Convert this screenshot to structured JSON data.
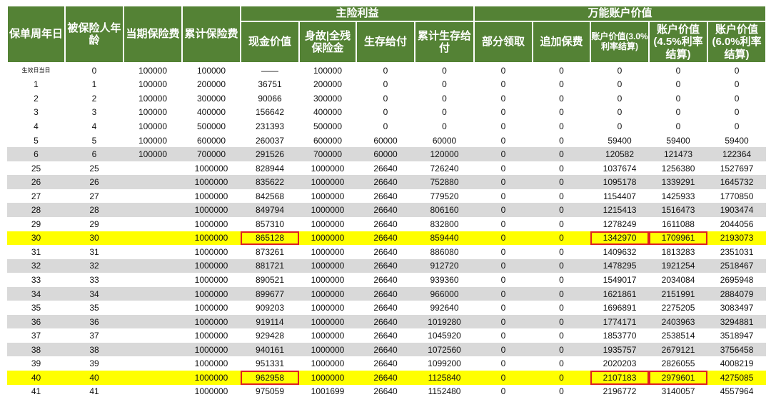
{
  "header": {
    "col_policy_year": "保单周年日",
    "col_age": "被保险人年龄",
    "col_premium": "当期保险费",
    "col_total_premium": "累计保险费",
    "group_main": "主险利益",
    "group_universal": "万能账户价值",
    "col_cash_value": "现金价值",
    "col_death_benefit": "身故|全残保险金",
    "col_survival": "生存给付",
    "col_total_survival": "累计生存给付",
    "col_partial_withdraw": "部分领取",
    "col_additional_premium": "追加保费",
    "col_acct_30": "账户价值(3.0%利率结算)",
    "col_acct_45": "账户价值(4.5%利率结算)",
    "col_acct_60": "账户价值(6.0%利率结算)"
  },
  "colors": {
    "header_bg": "#548235",
    "highlight": "#ffff00",
    "stripe": "#d9d9d9",
    "box": "#e02020"
  },
  "rows": [
    {
      "style": "white",
      "cells": [
        "生效日当日",
        "0",
        "100000",
        "100000",
        "——",
        "100000",
        "0",
        "0",
        "0",
        "0",
        "0",
        "0",
        "0"
      ]
    },
    {
      "style": "white",
      "cells": [
        "1",
        "1",
        "100000",
        "200000",
        "36751",
        "200000",
        "0",
        "0",
        "0",
        "0",
        "0",
        "0",
        "0"
      ]
    },
    {
      "style": "white",
      "cells": [
        "2",
        "2",
        "100000",
        "300000",
        "90066",
        "300000",
        "0",
        "0",
        "0",
        "0",
        "0",
        "0",
        "0"
      ]
    },
    {
      "style": "white",
      "cells": [
        "3",
        "3",
        "100000",
        "400000",
        "156642",
        "400000",
        "0",
        "0",
        "0",
        "0",
        "0",
        "0",
        "0"
      ]
    },
    {
      "style": "white",
      "cells": [
        "4",
        "4",
        "100000",
        "500000",
        "231393",
        "500000",
        "0",
        "0",
        "0",
        "0",
        "0",
        "0",
        "0"
      ]
    },
    {
      "style": "white",
      "cells": [
        "5",
        "5",
        "100000",
        "600000",
        "260037",
        "600000",
        "60000",
        "60000",
        "0",
        "0",
        "59400",
        "59400",
        "59400"
      ]
    },
    {
      "style": "gray",
      "cells": [
        "6",
        "6",
        "100000",
        "700000",
        "291526",
        "700000",
        "60000",
        "120000",
        "0",
        "0",
        "120582",
        "121473",
        "122364"
      ]
    },
    {
      "style": "white",
      "cells": [
        "25",
        "25",
        "",
        "1000000",
        "828944",
        "1000000",
        "26640",
        "726240",
        "0",
        "0",
        "1037674",
        "1256380",
        "1527697"
      ]
    },
    {
      "style": "gray",
      "cells": [
        "26",
        "26",
        "",
        "1000000",
        "835622",
        "1000000",
        "26640",
        "752880",
        "0",
        "0",
        "1095178",
        "1339291",
        "1645732"
      ]
    },
    {
      "style": "white",
      "cells": [
        "27",
        "27",
        "",
        "1000000",
        "842568",
        "1000000",
        "26640",
        "779520",
        "0",
        "0",
        "1154407",
        "1425933",
        "1770850"
      ]
    },
    {
      "style": "gray",
      "cells": [
        "28",
        "28",
        "",
        "1000000",
        "849794",
        "1000000",
        "26640",
        "806160",
        "0",
        "0",
        "1215413",
        "1516473",
        "1903474"
      ]
    },
    {
      "style": "white",
      "cells": [
        "29",
        "29",
        "",
        "1000000",
        "857310",
        "1000000",
        "26640",
        "832800",
        "0",
        "0",
        "1278249",
        "1611088",
        "2044056"
      ]
    },
    {
      "style": "yellow",
      "boxed": [
        4,
        10,
        11
      ],
      "cells": [
        "30",
        "30",
        "",
        "1000000",
        "865128",
        "1000000",
        "26640",
        "859440",
        "0",
        "0",
        "1342970",
        "1709961",
        "2193073"
      ]
    },
    {
      "style": "white",
      "cells": [
        "31",
        "31",
        "",
        "1000000",
        "873261",
        "1000000",
        "26640",
        "886080",
        "0",
        "0",
        "1409632",
        "1813283",
        "2351031"
      ]
    },
    {
      "style": "gray",
      "cells": [
        "32",
        "32",
        "",
        "1000000",
        "881721",
        "1000000",
        "26640",
        "912720",
        "0",
        "0",
        "1478295",
        "1921254",
        "2518467"
      ]
    },
    {
      "style": "white",
      "cells": [
        "33",
        "33",
        "",
        "1000000",
        "890521",
        "1000000",
        "26640",
        "939360",
        "0",
        "0",
        "1549017",
        "2034084",
        "2695948"
      ]
    },
    {
      "style": "gray",
      "cells": [
        "34",
        "34",
        "",
        "1000000",
        "899677",
        "1000000",
        "26640",
        "966000",
        "0",
        "0",
        "1621861",
        "2151991",
        "2884079"
      ]
    },
    {
      "style": "white",
      "cells": [
        "35",
        "35",
        "",
        "1000000",
        "909203",
        "1000000",
        "26640",
        "992640",
        "0",
        "0",
        "1696891",
        "2275205",
        "3083497"
      ]
    },
    {
      "style": "gray",
      "cells": [
        "36",
        "36",
        "",
        "1000000",
        "919114",
        "1000000",
        "26640",
        "1019280",
        "0",
        "0",
        "1774171",
        "2403963",
        "3294881"
      ]
    },
    {
      "style": "white",
      "cells": [
        "37",
        "37",
        "",
        "1000000",
        "929428",
        "1000000",
        "26640",
        "1045920",
        "0",
        "0",
        "1853770",
        "2538514",
        "3518947"
      ]
    },
    {
      "style": "gray",
      "cells": [
        "38",
        "38",
        "",
        "1000000",
        "940161",
        "1000000",
        "26640",
        "1072560",
        "0",
        "0",
        "1935757",
        "2679121",
        "3756458"
      ]
    },
    {
      "style": "white",
      "cells": [
        "39",
        "39",
        "",
        "1000000",
        "951331",
        "1000000",
        "26640",
        "1099200",
        "0",
        "0",
        "2020203",
        "2826055",
        "4008219"
      ]
    },
    {
      "style": "yellow",
      "boxed": [
        4,
        10,
        11
      ],
      "cells": [
        "40",
        "40",
        "",
        "1000000",
        "962958",
        "1000000",
        "26640",
        "1125840",
        "0",
        "0",
        "2107183",
        "2979601",
        "4275085"
      ]
    },
    {
      "style": "white",
      "cells": [
        "41",
        "41",
        "",
        "1000000",
        "975059",
        "1001699",
        "26640",
        "1152480",
        "0",
        "0",
        "2196772",
        "3140057",
        "4557964"
      ]
    }
  ]
}
